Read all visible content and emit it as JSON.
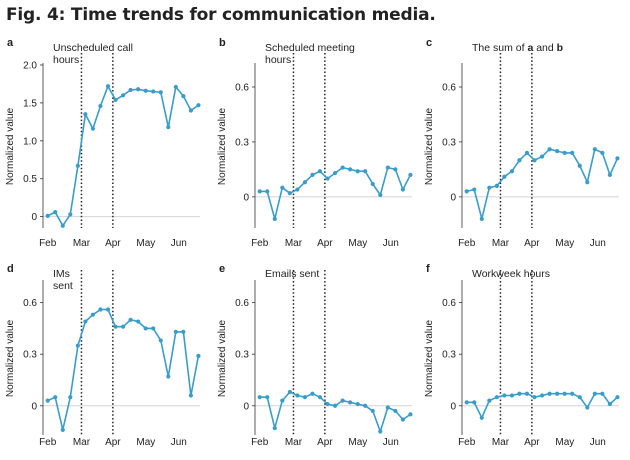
{
  "figure": {
    "title": "Fig. 4: Time trends for communication media."
  },
  "style": {
    "line_color": "#3a9cc9",
    "event_line_color": "#222222",
    "zero_line_color": "#d4d4d4",
    "axis_color": "#333333"
  },
  "chart_data": [
    {
      "id": "a",
      "panel_letter": "a",
      "type": "line",
      "title": "Unscheduled call hours",
      "title_lines": [
        "Unscheduled call",
        "hours"
      ],
      "ylabel": "Normalized value",
      "ylim": [
        -0.15,
        2.0
      ],
      "yticks": [
        0,
        0.5,
        1.0,
        1.5,
        2.0
      ],
      "ytick_labels": [
        "0",
        "0.5",
        "1.0",
        "1.5",
        "2.0"
      ],
      "xticks": [
        "Feb",
        "Mar",
        "Apr",
        "May",
        "Jun"
      ],
      "event_lines": [
        "Mar",
        "Apr"
      ],
      "values": [
        0.01,
        0.06,
        -0.12,
        0.03,
        0.67,
        1.35,
        1.16,
        1.46,
        1.72,
        1.54,
        1.6,
        1.67,
        1.68,
        1.66,
        1.65,
        1.64,
        1.18,
        1.71,
        1.59,
        1.4,
        1.47
      ]
    },
    {
      "id": "b",
      "panel_letter": "b",
      "type": "line",
      "title": "Scheduled meeting hours",
      "title_lines": [
        "Scheduled meeting",
        "hours"
      ],
      "ylabel": "Normalized value",
      "ylim": [
        -0.17,
        0.72
      ],
      "yticks": [
        0,
        0.3,
        0.6
      ],
      "ytick_labels": [
        "0",
        "0.3",
        "0.6"
      ],
      "xticks": [
        "Feb",
        "Mar",
        "Apr",
        "May",
        "Jun"
      ],
      "event_lines": [
        "Mar",
        "Apr"
      ],
      "values": [
        0.03,
        0.03,
        -0.12,
        0.05,
        0.02,
        0.04,
        0.08,
        0.12,
        0.14,
        0.1,
        0.13,
        0.16,
        0.15,
        0.14,
        0.14,
        0.07,
        0.01,
        0.16,
        0.15,
        0.04,
        0.12
      ]
    },
    {
      "id": "c",
      "panel_letter": "c",
      "type": "line",
      "title": "The sum of a and b",
      "title_parts": [
        "The sum of ",
        "a",
        " and ",
        "b"
      ],
      "ylabel": "Normalized value",
      "ylim": [
        -0.17,
        0.72
      ],
      "yticks": [
        0,
        0.3,
        0.6
      ],
      "ytick_labels": [
        "0",
        "0.3",
        "0.6"
      ],
      "xticks": [
        "Feb",
        "Mar",
        "Apr",
        "May",
        "Jun"
      ],
      "event_lines": [
        "Mar",
        "Apr"
      ],
      "values": [
        0.03,
        0.04,
        -0.12,
        0.05,
        0.06,
        0.11,
        0.14,
        0.2,
        0.24,
        0.2,
        0.22,
        0.26,
        0.25,
        0.24,
        0.24,
        0.17,
        0.08,
        0.26,
        0.24,
        0.12,
        0.21
      ]
    },
    {
      "id": "d",
      "panel_letter": "d",
      "type": "line",
      "title": "IMs sent",
      "title_lines": [
        "IMs",
        "sent"
      ],
      "ylabel": "Normalized value",
      "ylim": [
        -0.17,
        0.72
      ],
      "yticks": [
        0,
        0.3,
        0.6
      ],
      "ytick_labels": [
        "0",
        "0.3",
        "0.6"
      ],
      "xticks": [
        "Feb",
        "Mar",
        "Apr",
        "May",
        "Jun"
      ],
      "event_lines": [
        "Mar",
        "Apr"
      ],
      "values": [
        0.03,
        0.05,
        -0.14,
        0.05,
        0.35,
        0.49,
        0.53,
        0.56,
        0.56,
        0.46,
        0.46,
        0.5,
        0.49,
        0.45,
        0.45,
        0.38,
        0.17,
        0.43,
        0.43,
        0.06,
        0.29
      ]
    },
    {
      "id": "e",
      "panel_letter": "e",
      "type": "line",
      "title": "Emails sent",
      "title_lines": [
        "Emails sent"
      ],
      "ylabel": "Normalized value",
      "ylim": [
        -0.17,
        0.72
      ],
      "yticks": [
        0,
        0.3,
        0.6
      ],
      "ytick_labels": [
        "0",
        "0.3",
        "0.6"
      ],
      "xticks": [
        "Feb",
        "Mar",
        "Apr",
        "May",
        "Jun"
      ],
      "event_lines": [
        "Mar",
        "Apr"
      ],
      "values": [
        0.05,
        0.05,
        -0.13,
        0.03,
        0.08,
        0.06,
        0.05,
        0.07,
        0.05,
        0.01,
        0.0,
        0.03,
        0.02,
        0.01,
        0.0,
        -0.03,
        -0.15,
        -0.01,
        -0.03,
        -0.08,
        -0.05
      ]
    },
    {
      "id": "f",
      "panel_letter": "f",
      "type": "line",
      "title": "Workweek hours",
      "title_lines": [
        "Workweek hours"
      ],
      "ylabel": "Normalized value",
      "ylim": [
        -0.17,
        0.72
      ],
      "yticks": [
        0,
        0.3,
        0.6
      ],
      "ytick_labels": [
        "0",
        "0.3",
        "0.6"
      ],
      "xticks": [
        "Feb",
        "Mar",
        "Apr",
        "May",
        "Jun"
      ],
      "event_lines": [
        "Mar",
        "Apr"
      ],
      "values": [
        0.02,
        0.02,
        -0.07,
        0.03,
        0.05,
        0.06,
        0.06,
        0.07,
        0.07,
        0.05,
        0.06,
        0.07,
        0.07,
        0.07,
        0.07,
        0.05,
        -0.01,
        0.07,
        0.07,
        0.01,
        0.05
      ]
    }
  ]
}
